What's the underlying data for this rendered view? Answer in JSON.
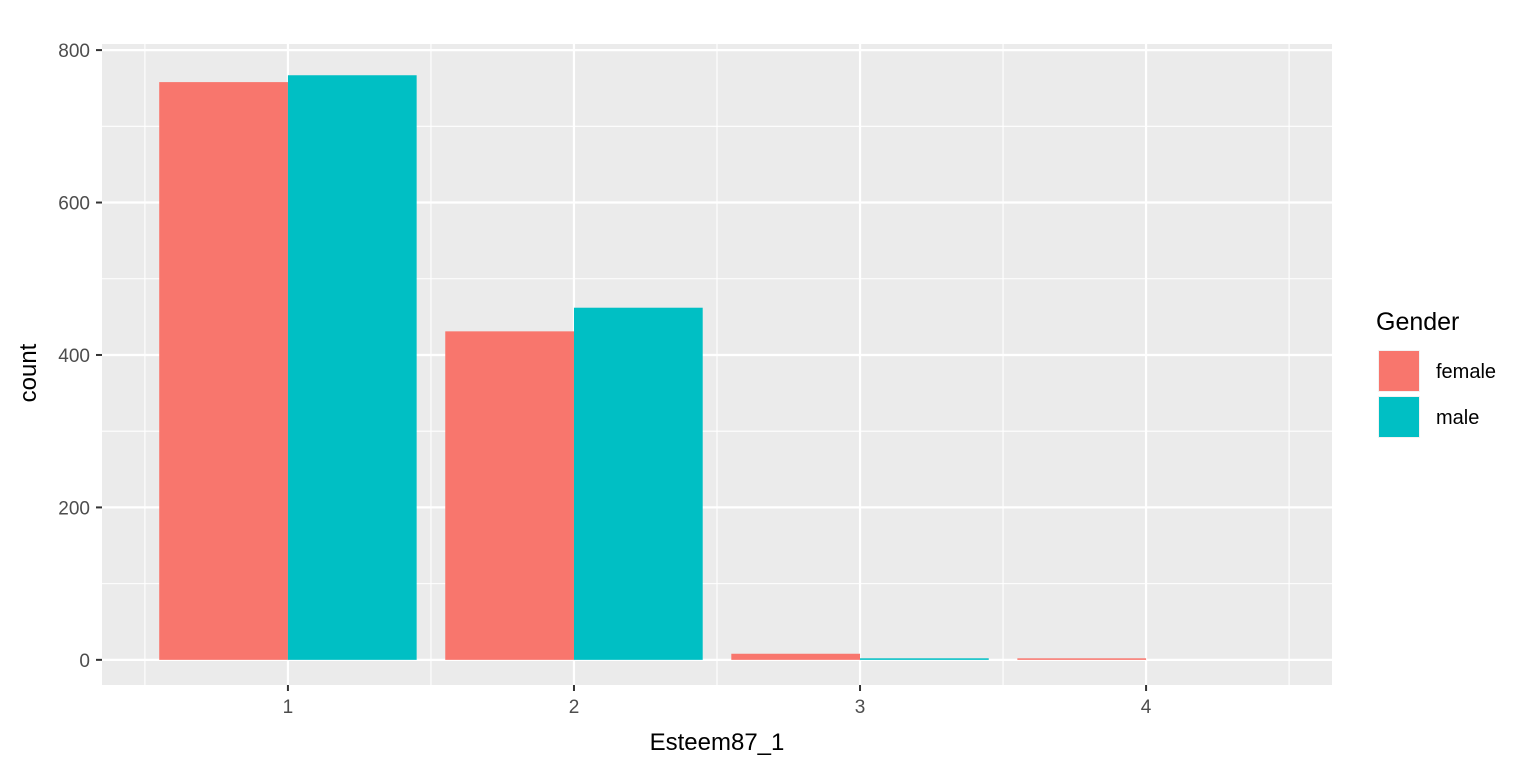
{
  "chart_data": {
    "type": "bar",
    "title": "",
    "xlabel": "Esteem87_1",
    "ylabel": "count",
    "categories": [
      "1",
      "2",
      "3",
      "4"
    ],
    "series": [
      {
        "name": "female",
        "color": "#F8766D",
        "values": [
          758,
          431,
          8,
          2
        ]
      },
      {
        "name": "male",
        "color": "#00BFC4",
        "values": [
          767,
          462,
          2,
          0
        ]
      }
    ],
    "ylim": [
      -33,
      808
    ],
    "yticks": [
      0,
      200,
      400,
      600,
      800
    ],
    "grid": true,
    "panel_background": "#EBEBEB",
    "grid_color": "#FFFFFF",
    "legend": {
      "title": "Gender",
      "position": "right",
      "items": [
        "female",
        "male"
      ]
    }
  }
}
